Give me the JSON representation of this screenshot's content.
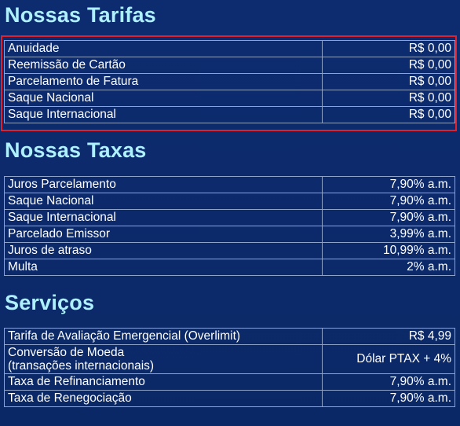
{
  "tarifas": {
    "title": "Nossas Tarifas",
    "rows": [
      {
        "label": "Anuidade",
        "value": "R$ 0,00"
      },
      {
        "label": "Reemissão de Cartão",
        "value": "R$ 0,00"
      },
      {
        "label": "Parcelamento de Fatura",
        "value": "R$ 0,00"
      },
      {
        "label": "Saque Nacional",
        "value": "R$ 0,00"
      },
      {
        "label": "Saque Internacional",
        "value": "R$ 0,00"
      }
    ]
  },
  "taxas": {
    "title": "Nossas Taxas",
    "rows": [
      {
        "label": "Juros Parcelamento",
        "value": "7,90% a.m."
      },
      {
        "label": "Saque Nacional",
        "value": "7,90% a.m."
      },
      {
        "label": "Saque Internacional",
        "value": "7,90% a.m."
      },
      {
        "label": "Parcelado Emissor",
        "value": "3,99% a.m."
      },
      {
        "label": "Juros de atraso",
        "value": "10,99% a.m."
      },
      {
        "label": "Multa",
        "value": "2% a.m."
      }
    ]
  },
  "servicos": {
    "title": "Serviços",
    "rows": [
      {
        "label": "Tarifa de Avaliação Emergencial (Overlimit)",
        "value": "R$ 4,99"
      },
      {
        "label_line1": "Conversão de Moeda",
        "label_line2": "(transações internacionais)",
        "value": "Dólar PTAX + 4%"
      },
      {
        "label": "Taxa de Refinanciamento",
        "value": "7,90% a.m."
      },
      {
        "label": "Taxa de Renegociação",
        "value": "7,90% a.m."
      }
    ]
  },
  "colors": {
    "background": "#0c2a6b",
    "heading": "#aef0ff",
    "grid": "#8fa3c9",
    "highlight": "#e0212b"
  }
}
